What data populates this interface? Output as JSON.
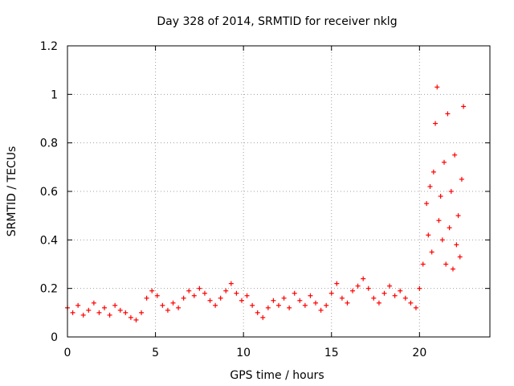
{
  "chart_data": {
    "type": "scatter",
    "title": "Day 328 of 2014, SRMTID for receiver nklg",
    "xlabel": "GPS time / hours",
    "ylabel": "SRMTID / TECUs",
    "xlim": [
      0,
      24
    ],
    "ylim": [
      0,
      1.2
    ],
    "xticks": [
      0,
      5,
      10,
      15,
      20
    ],
    "xtick_labels": [
      "0",
      "5",
      "10",
      "15",
      "20"
    ],
    "yticks": [
      0,
      0.2,
      0.4,
      0.6,
      0.8,
      1,
      1.2
    ],
    "ytick_labels": [
      "0",
      "0.2",
      "0.4",
      "0.6",
      "0.8",
      "1",
      "1.2"
    ],
    "grid": true,
    "marker": "+",
    "series": [
      {
        "name": "nklg",
        "color": "#ff0000",
        "x": [
          0.0,
          0.3,
          0.6,
          0.9,
          1.2,
          1.5,
          1.8,
          2.1,
          2.4,
          2.7,
          3.0,
          3.3,
          3.6,
          3.9,
          4.2,
          4.5,
          4.8,
          5.1,
          5.4,
          5.7,
          6.0,
          6.3,
          6.6,
          6.9,
          7.2,
          7.5,
          7.8,
          8.1,
          8.4,
          8.7,
          9.0,
          9.3,
          9.6,
          9.9,
          10.2,
          10.5,
          10.8,
          11.1,
          11.4,
          11.7,
          12.0,
          12.3,
          12.6,
          12.9,
          13.2,
          13.5,
          13.8,
          14.1,
          14.4,
          14.7,
          15.0,
          15.3,
          15.6,
          15.9,
          16.2,
          16.5,
          16.8,
          17.1,
          17.4,
          17.7,
          18.0,
          18.3,
          18.6,
          18.9,
          19.2,
          19.5,
          19.8,
          20.0,
          20.2,
          20.4,
          20.5,
          20.6,
          20.7,
          20.8,
          20.9,
          21.0,
          21.1,
          21.2,
          21.3,
          21.4,
          21.5,
          21.6,
          21.7,
          21.8,
          21.9,
          22.0,
          22.1,
          22.2,
          22.3,
          22.4,
          22.5
        ],
        "y": [
          0.12,
          0.1,
          0.13,
          0.09,
          0.11,
          0.14,
          0.1,
          0.12,
          0.09,
          0.13,
          0.11,
          0.1,
          0.08,
          0.07,
          0.1,
          0.16,
          0.19,
          0.17,
          0.13,
          0.11,
          0.14,
          0.12,
          0.16,
          0.19,
          0.17,
          0.2,
          0.18,
          0.15,
          0.13,
          0.16,
          0.19,
          0.22,
          0.18,
          0.15,
          0.17,
          0.13,
          0.1,
          0.08,
          0.12,
          0.15,
          0.13,
          0.16,
          0.12,
          0.18,
          0.15,
          0.13,
          0.17,
          0.14,
          0.11,
          0.13,
          0.18,
          0.22,
          0.16,
          0.14,
          0.19,
          0.21,
          0.24,
          0.2,
          0.16,
          0.14,
          0.18,
          0.21,
          0.17,
          0.19,
          0.16,
          0.14,
          0.12,
          0.2,
          0.3,
          0.55,
          0.42,
          0.62,
          0.35,
          0.68,
          0.88,
          1.03,
          0.48,
          0.58,
          0.4,
          0.72,
          0.3,
          0.92,
          0.45,
          0.6,
          0.28,
          0.75,
          0.38,
          0.5,
          0.33,
          0.65,
          0.95
        ]
      }
    ]
  }
}
